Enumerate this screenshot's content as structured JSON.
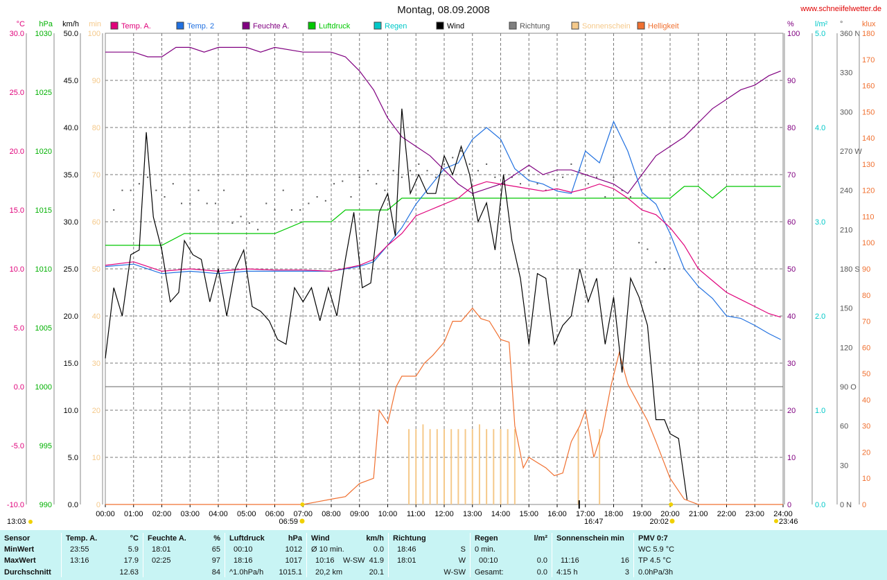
{
  "header": {
    "title": "Montag, 08.09.2008",
    "site": "www.schneiifelwetter.de"
  },
  "chart_data": {
    "type": "line",
    "title": "Montag, 08.09.2008",
    "x_ticks": [
      "00:00",
      "01:00",
      "02:00",
      "03:00",
      "04:00",
      "05:00",
      "06:00",
      "07:00",
      "08:00",
      "09:00",
      "10:00",
      "11:00",
      "12:00",
      "13:00",
      "14:00",
      "15:00",
      "16:00",
      "17:00",
      "18:00",
      "19:00",
      "20:00",
      "21:00",
      "22:00",
      "23:00",
      "24:00"
    ],
    "axes": [
      {
        "unit": "°C",
        "color": "#e0007a",
        "ylim": [
          -10,
          30
        ],
        "ticks": [
          "-10.0",
          "-5.0",
          "0.0",
          "5.0",
          "10.0",
          "15.0",
          "20.0",
          "25.0",
          "30.0"
        ]
      },
      {
        "unit": "hPa",
        "color": "#00b000",
        "ylim": [
          990,
          1030
        ],
        "ticks": [
          "990",
          "995",
          "1000",
          "1005",
          "1010",
          "1015",
          "1020",
          "1025",
          "1030"
        ]
      },
      {
        "unit": "km/h",
        "color": "#000000",
        "ylim": [
          0,
          50
        ],
        "ticks": [
          "0.0",
          "5.0",
          "10.0",
          "15.0",
          "20.0",
          "25.0",
          "30.0",
          "35.0",
          "40.0",
          "45.0",
          "50.0"
        ]
      },
      {
        "unit": "min",
        "color": "#f5c98a",
        "ylim": [
          0,
          100
        ],
        "ticks": [
          "0",
          "10",
          "20",
          "30",
          "40",
          "50",
          "60",
          "70",
          "80",
          "90",
          "100"
        ]
      },
      {
        "unit": "%",
        "color": "#800080",
        "ylim": [
          0,
          100
        ],
        "ticks": [
          "0",
          "10",
          "20",
          "30",
          "40",
          "50",
          "60",
          "70",
          "80",
          "90",
          "100"
        ]
      },
      {
        "unit": "l/m²",
        "color": "#00c8c8",
        "ylim": [
          0,
          5
        ],
        "ticks": [
          "0.0",
          "1.0",
          "2.0",
          "3.0",
          "4.0",
          "5.0"
        ]
      },
      {
        "unit": "°",
        "color": "#555555",
        "ylim": [
          0,
          360
        ],
        "ticks": [
          "0 N",
          "30",
          "60",
          "90 O",
          "120",
          "150",
          "180 S",
          "210",
          "240",
          "270 W",
          "300",
          "330",
          "360 N"
        ]
      },
      {
        "unit": "klux",
        "color": "#f07030",
        "ylim": [
          0,
          180
        ],
        "ticks": [
          "0",
          "10",
          "20",
          "30",
          "40",
          "50",
          "60",
          "70",
          "80",
          "90",
          "100",
          "110",
          "120",
          "130",
          "140",
          "150",
          "160",
          "170",
          "180"
        ]
      }
    ],
    "series": [
      {
        "name": "Temp. A.",
        "color": "#e0007a",
        "axis": 0,
        "x": [
          0,
          1,
          2,
          3,
          4,
          5,
          6,
          7,
          8,
          9,
          9.5,
          10,
          10.5,
          11,
          11.5,
          12,
          12.5,
          13,
          13.5,
          14,
          14.5,
          15,
          15.5,
          16,
          16.5,
          17,
          17.5,
          18,
          18.5,
          19,
          19.5,
          20,
          20.5,
          21,
          21.5,
          22,
          22.5,
          23,
          23.5,
          23.92
        ],
        "y": [
          10.3,
          10.6,
          9.8,
          10.0,
          9.8,
          10.0,
          9.9,
          9.9,
          9.8,
          10.3,
          10.8,
          12.0,
          13.0,
          14.5,
          15.0,
          15.5,
          16.0,
          17.0,
          17.4,
          17.2,
          17.0,
          16.8,
          16.6,
          16.8,
          16.5,
          16.8,
          17.2,
          16.8,
          16.0,
          15.0,
          14.6,
          13.5,
          12.0,
          10.0,
          9.0,
          8.0,
          7.4,
          6.8,
          6.2,
          5.9
        ]
      },
      {
        "name": "Temp. 2",
        "color": "#2070e0",
        "axis": 0,
        "x": [
          0,
          1,
          2,
          3,
          4,
          5,
          6,
          7,
          8,
          9,
          9.5,
          10,
          10.5,
          11,
          11.5,
          12,
          12.5,
          13,
          13.5,
          14,
          14.5,
          15,
          15.5,
          16,
          16.5,
          17,
          17.5,
          18,
          18.5,
          19,
          19.5,
          20,
          20.5,
          21,
          21.5,
          22,
          22.5,
          23,
          23.5,
          23.92
        ],
        "y": [
          10.2,
          10.4,
          9.6,
          9.8,
          9.6,
          9.8,
          9.8,
          9.8,
          9.8,
          10.2,
          10.6,
          12.0,
          13.5,
          15.5,
          17.0,
          18.5,
          19.0,
          21.0,
          22.0,
          21.0,
          18.5,
          17.5,
          17.2,
          16.6,
          16.4,
          20.0,
          19.0,
          22.5,
          20.0,
          16.5,
          15.5,
          13.0,
          10.0,
          8.5,
          7.5,
          6.0,
          5.8,
          5.2,
          4.5,
          4.0
        ]
      },
      {
        "name": "Feuchte A.",
        "color": "#800080",
        "axis": 4,
        "x": [
          0,
          1,
          1.5,
          2,
          2.5,
          3,
          3.5,
          4,
          5,
          5.5,
          6,
          7,
          8,
          8.5,
          9,
          9.5,
          10,
          10.5,
          11,
          11.5,
          12,
          12.5,
          13,
          13.5,
          14,
          14.5,
          15,
          15.5,
          16,
          16.5,
          17,
          17.5,
          18,
          18.5,
          19,
          19.5,
          20,
          20.5,
          21,
          21.5,
          22,
          22.5,
          23,
          23.5,
          23.92
        ],
        "y": [
          96,
          96,
          95,
          95,
          97,
          97,
          96,
          97,
          97,
          96,
          97,
          96,
          96,
          95,
          92,
          88,
          82,
          78,
          76,
          74,
          71,
          68,
          66,
          67,
          68,
          70,
          72,
          70,
          71,
          71,
          70,
          69,
          68,
          66,
          70,
          74,
          76,
          78,
          81,
          84,
          86,
          88,
          89,
          91,
          92
        ]
      },
      {
        "name": "Luftdruck",
        "color": "#00c800",
        "axis": 1,
        "x": [
          0,
          1,
          2,
          2.8,
          4,
          5,
          6,
          7,
          8,
          8.5,
          9,
          10,
          10.5,
          11,
          12,
          13,
          14,
          15,
          16,
          17,
          18,
          18.5,
          19,
          20,
          20.5,
          21,
          21.5,
          22,
          23,
          23.92
        ],
        "y": [
          1012,
          1012,
          1012,
          1013,
          1013,
          1013,
          1013,
          1014,
          1014,
          1015,
          1015,
          1015,
          1016,
          1016,
          1016,
          1016,
          1016,
          1016,
          1016,
          1016,
          1016,
          1016,
          1016,
          1016,
          1017,
          1017,
          1016,
          1017,
          1017,
          1017
        ]
      },
      {
        "name": "Wind",
        "color": "#000000",
        "axis": 2,
        "x": [
          0,
          0.3,
          0.6,
          0.9,
          1.2,
          1.45,
          1.7,
          2.0,
          2.3,
          2.6,
          2.8,
          3.1,
          3.4,
          3.7,
          4.0,
          4.3,
          4.6,
          4.9,
          5.2,
          5.5,
          5.8,
          6.1,
          6.4,
          6.7,
          7.0,
          7.3,
          7.6,
          7.9,
          8.2,
          8.5,
          8.8,
          9.1,
          9.4,
          9.7,
          10.0,
          10.27,
          10.5,
          10.8,
          11.1,
          11.4,
          11.7,
          12.0,
          12.3,
          12.6,
          12.9,
          13.2,
          13.5,
          13.8,
          14.1,
          14.4,
          14.7,
          15.0,
          15.3,
          15.6,
          15.9,
          16.2,
          16.5,
          16.8,
          17.1,
          17.4,
          17.7,
          18.0,
          18.3,
          18.6,
          18.9,
          19.2,
          19.5,
          19.8,
          20.0,
          20.3,
          20.6
        ],
        "y": [
          15.5,
          23,
          20,
          26.5,
          27,
          39.5,
          30.5,
          27,
          21.5,
          22.5,
          28,
          26.5,
          26,
          21.5,
          25,
          20,
          25,
          27,
          21,
          20.5,
          19.5,
          17.5,
          17,
          23,
          21.5,
          23,
          19.5,
          23,
          20,
          26,
          31,
          23,
          23.5,
          31,
          33,
          28.5,
          42,
          33,
          35,
          33,
          33,
          37,
          35,
          38,
          35,
          30,
          32,
          27,
          35,
          28,
          24,
          17,
          24.5,
          24,
          17,
          19,
          20,
          25,
          21.5,
          24,
          17,
          22,
          14,
          24,
          22,
          19,
          9,
          9,
          7.5,
          7,
          0.5
        ]
      },
      {
        "name": "Regen",
        "color": "#00c8c8",
        "axis": 5,
        "x": [
          0,
          23.92
        ],
        "y": [
          0,
          0
        ]
      },
      {
        "name": "Helligkeit",
        "color": "#f07030",
        "axis": 7,
        "x": [
          0,
          7,
          7.5,
          8,
          8.5,
          9,
          9.5,
          9.7,
          10,
          10.3,
          10.5,
          11,
          11.3,
          11.6,
          12,
          12.3,
          12.6,
          13,
          13.3,
          13.6,
          14,
          14.3,
          14.5,
          14.8,
          15.0,
          15.3,
          15.6,
          15.9,
          16.2,
          16.5,
          16.8,
          17.0,
          17.3,
          17.6,
          17.9,
          18.2,
          18.5,
          18.9,
          19.2,
          19.5,
          20.0,
          20.5,
          21,
          24
        ],
        "y": [
          0,
          0,
          1,
          2,
          3,
          8,
          10,
          36,
          31,
          45,
          49,
          49,
          54,
          57,
          62,
          70,
          70,
          75,
          71,
          70,
          63,
          62,
          30,
          14,
          18,
          16,
          14,
          11,
          12,
          24,
          30,
          36,
          18,
          28,
          45,
          58,
          46,
          38,
          32,
          24,
          10,
          2,
          0,
          0
        ]
      }
    ],
    "direction_points": {
      "name": "Richtung",
      "color": "#555555",
      "axis": 6,
      "x": [
        0.3,
        0.6,
        0.9,
        1.2,
        1.5,
        1.8,
        2.1,
        2.4,
        2.7,
        3.0,
        3.3,
        3.6,
        3.9,
        4.2,
        4.5,
        4.8,
        5.1,
        5.4,
        5.7,
        6.0,
        6.3,
        6.6,
        6.9,
        7.2,
        7.5,
        7.8,
        8.1,
        8.4,
        8.7,
        9.0,
        9.3,
        9.6,
        9.9,
        10.2,
        10.5,
        10.8,
        11.1,
        11.4,
        11.7,
        12.0,
        12.3,
        12.6,
        12.9,
        13.2,
        13.5,
        13.8,
        14.1,
        14.4,
        14.7,
        15.0,
        15.3,
        15.6,
        15.9,
        16.2,
        16.5,
        16.8,
        17.1,
        17.4,
        17.7,
        18.0,
        18.3,
        18.6,
        18.9,
        19.2,
        19.5,
        19.8
      ],
      "y": [
        225,
        240,
        240,
        245,
        250,
        240,
        235,
        245,
        230,
        230,
        240,
        230,
        230,
        240,
        215,
        220,
        215,
        210,
        230,
        225,
        240,
        225,
        225,
        230,
        235,
        232,
        245,
        247,
        235,
        250,
        255,
        245,
        240,
        255,
        250,
        255,
        260,
        255,
        250,
        260,
        265,
        270,
        260,
        255,
        260,
        250,
        245,
        250,
        245,
        255,
        245,
        240,
        248,
        250,
        260,
        255,
        245,
        250,
        235,
        250,
        240,
        235,
        200,
        195,
        185,
        180
      ]
    },
    "sunshine_bars": {
      "name": "Sonnenschein",
      "color": "#f5c98a",
      "axis": 3,
      "x": [
        10.75,
        11.0,
        11.25,
        11.5,
        11.75,
        12.0,
        12.25,
        12.5,
        12.75,
        13.0,
        13.25,
        13.5,
        13.75,
        14.0,
        14.25,
        14.5,
        16.75,
        17.5
      ],
      "y": [
        16,
        16,
        17,
        16,
        16,
        16,
        16,
        16,
        16,
        16,
        17,
        16,
        16,
        16,
        16,
        16,
        16,
        16
      ]
    },
    "legend": [
      {
        "label": "Temp. A.",
        "color": "#e0007a"
      },
      {
        "label": "Temp. 2",
        "color": "#2070e0"
      },
      {
        "label": "Feuchte A.",
        "color": "#800080"
      },
      {
        "label": "Luftdruck",
        "color": "#00c800"
      },
      {
        "label": "Regen",
        "color": "#00c8c8"
      },
      {
        "label": "Wind",
        "color": "#000000"
      },
      {
        "label": "Richtung",
        "color": "#808080"
      },
      {
        "label": "Sonnenschein",
        "color": "#f5c98a"
      },
      {
        "label": "Helligkeit",
        "color": "#f07030"
      }
    ],
    "annotations": {
      "sunrise": "06:59",
      "sunset": "20:02",
      "moonrise": "13:03",
      "moonset": "23:46",
      "noon_mark": "16:47"
    }
  },
  "stats": {
    "row_labels": [
      "Sensor",
      "MinWert",
      "MaxWert",
      "Durchschnitt"
    ],
    "temp": {
      "header": "Temp. A.",
      "unit": "°C",
      "min_time": "23:55",
      "min": "5.9",
      "max_time": "13:16",
      "max": "17.9",
      "avg": "12.63"
    },
    "humidity": {
      "header": "Feuchte A.",
      "unit": "%",
      "min_time": "18:01",
      "min": "65",
      "max_time": "02:25",
      "max": "97",
      "avg": "84"
    },
    "pressure": {
      "header": "Luftdruck",
      "unit": "hPa",
      "min_time": "00:10",
      "min": "1012",
      "max_time": "18:16",
      "max": "1017",
      "trend": "^1.0hPa/h",
      "avg": "1015.1"
    },
    "wind": {
      "header": "Wind",
      "unit": "km/h",
      "min_label": "Ø 10 min.",
      "min": "0.0",
      "max_time": "10:16",
      "max_dir": "W-SW",
      "max": "41.9",
      "dist": "20,2 km",
      "avg": "20.1"
    },
    "direction": {
      "header": "Richtung",
      "min_time": "18:46",
      "min": "S",
      "max_time": "18:01",
      "max": "W",
      "avg": "W-SW"
    },
    "rain": {
      "header": "Regen",
      "unit": "l/m²",
      "min_label": "0 min.",
      "max_time": "00:10",
      "max": "0.0",
      "total_label": "Gesamt:",
      "total": "0.0"
    },
    "sun": {
      "header": "Sonnenschein min",
      "max_time": "11:16",
      "max": "16",
      "total": "4:15 h",
      "avg": "3"
    },
    "pmv": {
      "header": "PMV 0:7",
      "wc": "WC 5.9 °C",
      "tp": "TP 4.5 °C",
      "dp": "0.0hPa/3h"
    }
  }
}
